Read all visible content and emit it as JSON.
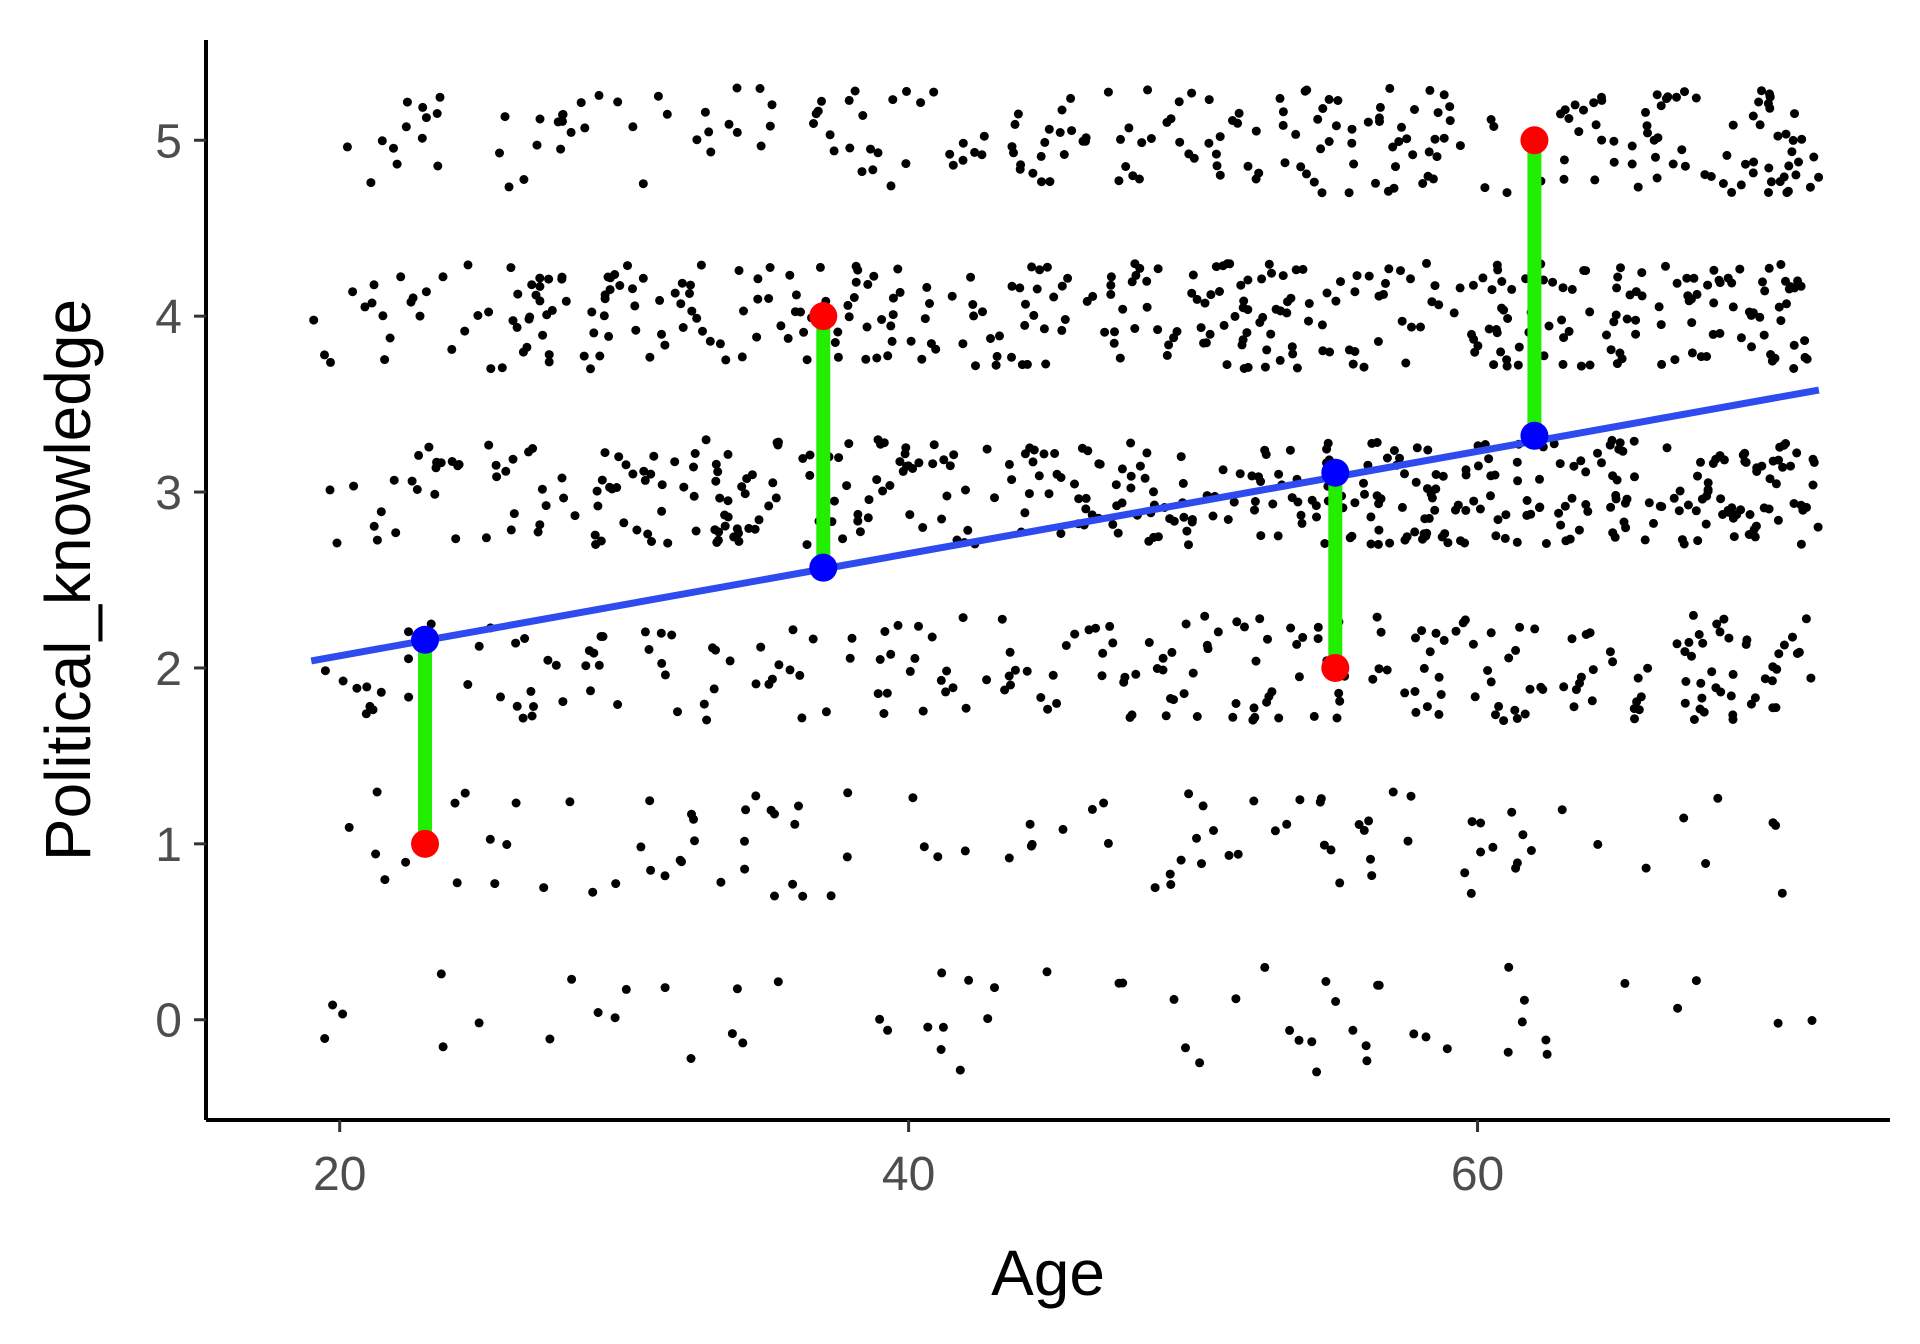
{
  "chart_data": {
    "type": "scatter",
    "title": "",
    "xlabel": "Age",
    "ylabel": "Political_knowledge",
    "xlim": [
      15.3,
      74.5
    ],
    "ylim": [
      -0.57,
      5.57
    ],
    "x_ticks": [
      20,
      40,
      60
    ],
    "y_ticks": [
      0,
      1,
      2,
      3,
      4,
      5
    ],
    "grid": false,
    "legend": "none",
    "colors": {
      "points": "#000000",
      "regression_line": "#2e4bf0",
      "fitted_point": "#0000ff",
      "observed_point": "#ff0000",
      "residual_segment": "#22ee00",
      "axis": "#000000",
      "tick_label": "#4d4d4d"
    },
    "regression_line": {
      "x": [
        19,
        72
      ],
      "y": [
        2.04,
        3.58
      ]
    },
    "highlighted": [
      {
        "x": 23,
        "observed": 1,
        "fitted": 2.16
      },
      {
        "x": 37,
        "observed": 4,
        "fitted": 2.57
      },
      {
        "x": 55,
        "observed": 2,
        "fitted": 3.11
      },
      {
        "x": 62,
        "observed": 5,
        "fitted": 3.32
      }
    ],
    "jitter": {
      "x_range": [
        19,
        72
      ],
      "y_spread": 0.3
    },
    "series": [
      {
        "y": 0,
        "count": 60
      },
      {
        "y": 1,
        "count": 100
      },
      {
        "y": 2,
        "count": 250
      },
      {
        "y": 3,
        "count": 420
      },
      {
        "y": 4,
        "count": 380
      },
      {
        "y": 5,
        "count": 250
      }
    ]
  }
}
